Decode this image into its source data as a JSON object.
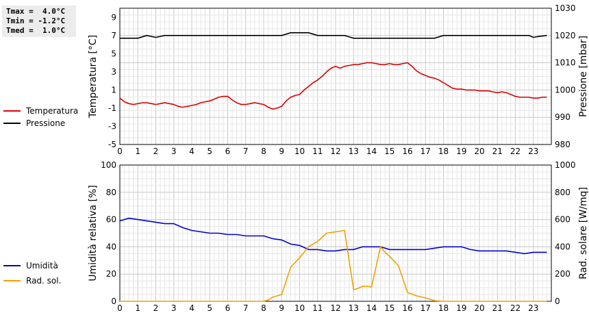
{
  "stats": {
    "tmax": "Tmax =  4.0°C",
    "tmin": "Tmin = -1.2°C",
    "tmed": "Tmed =  1.0°C"
  },
  "chart_data": [
    {
      "type": "line",
      "x_ticks": [
        "0",
        "1",
        "2",
        "3",
        "4",
        "5",
        "6",
        "7",
        "8",
        "9",
        "10",
        "11",
        "12",
        "13",
        "14",
        "15",
        "16",
        "17",
        "18",
        "19",
        "20",
        "21",
        "22",
        "23"
      ],
      "xlim": [
        0,
        24
      ],
      "ylabel_left": "Temperatura [°C]",
      "ylim_left": [
        -5,
        10
      ],
      "yticks_left": [
        "9",
        "7",
        "5",
        "3",
        "1",
        "-1",
        "-3",
        "-5"
      ],
      "ylabel_right": "Pressione [mbar]",
      "ylim_right": [
        980,
        1030
      ],
      "yticks_right": [
        "1030",
        "1020",
        "1010",
        "1000",
        "990",
        "980"
      ],
      "grid": true,
      "legend_position": "left",
      "series": [
        {
          "name": "Temperatura",
          "axis": "left",
          "color": "#dd0000",
          "x": [
            0,
            0.25,
            0.5,
            0.75,
            1,
            1.25,
            1.5,
            1.75,
            2,
            2.25,
            2.5,
            2.75,
            3,
            3.25,
            3.5,
            3.75,
            4,
            4.25,
            4.5,
            4.75,
            5,
            5.25,
            5.5,
            5.75,
            6,
            6.25,
            6.5,
            6.75,
            7,
            7.25,
            7.5,
            7.75,
            8,
            8.25,
            8.5,
            8.75,
            9,
            9.25,
            9.5,
            9.75,
            10,
            10.25,
            10.5,
            10.75,
            11,
            11.25,
            11.5,
            11.75,
            12,
            12.25,
            12.5,
            12.75,
            13,
            13.25,
            13.5,
            13.75,
            14,
            14.25,
            14.5,
            14.75,
            15,
            15.25,
            15.5,
            15.75,
            16,
            16.25,
            16.5,
            16.75,
            17,
            17.25,
            17.5,
            17.75,
            18,
            18.25,
            18.5,
            18.75,
            19,
            19.25,
            19.5,
            19.75,
            20,
            20.25,
            20.5,
            20.75,
            21,
            21.25,
            21.5,
            21.75,
            22,
            22.25,
            22.5,
            22.75,
            23,
            23.25,
            23.5,
            23.75
          ],
          "y": [
            0.1,
            -0.3,
            -0.5,
            -0.6,
            -0.5,
            -0.4,
            -0.4,
            -0.5,
            -0.6,
            -0.5,
            -0.4,
            -0.5,
            -0.6,
            -0.8,
            -0.9,
            -0.8,
            -0.7,
            -0.6,
            -0.4,
            -0.3,
            -0.2,
            0,
            0.2,
            0.3,
            0.3,
            -0.1,
            -0.4,
            -0.6,
            -0.6,
            -0.5,
            -0.4,
            -0.5,
            -0.6,
            -0.9,
            -1.1,
            -1.0,
            -0.8,
            -0.2,
            0.2,
            0.4,
            0.5,
            1.0,
            1.4,
            1.8,
            2.1,
            2.5,
            3.0,
            3.4,
            3.6,
            3.4,
            3.6,
            3.7,
            3.8,
            3.8,
            3.9,
            4.0,
            4.0,
            3.9,
            3.8,
            3.8,
            3.9,
            3.8,
            3.8,
            3.9,
            4.0,
            3.6,
            3.1,
            2.8,
            2.6,
            2.4,
            2.3,
            2.1,
            1.8,
            1.5,
            1.2,
            1.1,
            1.1,
            1.0,
            1.0,
            1.0,
            0.9,
            0.9,
            0.9,
            0.8,
            0.7,
            0.8,
            0.7,
            0.5,
            0.3,
            0.2,
            0.2,
            0.2,
            0.1,
            0.1,
            0.2,
            0.2
          ]
        },
        {
          "name": "Pressione",
          "axis": "right",
          "color": "#000000",
          "x": [
            0,
            1,
            1.25,
            1.5,
            2,
            2.5,
            3,
            4,
            5,
            6,
            7,
            8,
            9,
            9.5,
            10,
            10.5,
            11,
            12,
            12.5,
            13,
            14,
            15,
            16,
            17,
            17.5,
            18,
            19,
            20,
            21,
            22,
            22.75,
            23,
            23.25,
            23.75
          ],
          "y": [
            1019,
            1019,
            1019.5,
            1020,
            1019.3,
            1020,
            1020,
            1020,
            1020,
            1020,
            1020,
            1020,
            1020,
            1021,
            1021,
            1021,
            1020,
            1020,
            1020,
            1019,
            1019,
            1019,
            1019,
            1019,
            1019,
            1020,
            1020,
            1020,
            1020,
            1020,
            1020,
            1019.3,
            1019.6,
            1020
          ]
        }
      ]
    },
    {
      "type": "line",
      "x_ticks": [
        "0",
        "1",
        "2",
        "3",
        "4",
        "5",
        "6",
        "7",
        "8",
        "9",
        "10",
        "11",
        "12",
        "13",
        "14",
        "15",
        "16",
        "17",
        "18",
        "19",
        "20",
        "21",
        "22",
        "23"
      ],
      "xlim": [
        0,
        24
      ],
      "ylabel_left": "Umidità relativa [%]",
      "ylim_left": [
        0,
        100
      ],
      "yticks_left": [
        "100",
        "80",
        "60",
        "40",
        "20",
        "0"
      ],
      "ylabel_right": "Rad. solare [W/mq]",
      "ylim_right": [
        0,
        1000
      ],
      "yticks_right": [
        "1000",
        "800",
        "600",
        "400",
        "200",
        "0"
      ],
      "grid": true,
      "legend_position": "left",
      "series": [
        {
          "name": "Umidità",
          "axis": "left",
          "color": "#0000cc",
          "x": [
            0,
            0.5,
            1,
            1.5,
            2,
            2.5,
            3,
            3.5,
            4,
            4.5,
            5,
            5.5,
            6,
            6.5,
            7,
            7.5,
            8,
            8.5,
            9,
            9.5,
            10,
            10.5,
            11,
            11.5,
            12,
            12.5,
            13,
            13.5,
            14,
            14.5,
            15,
            15.5,
            16,
            16.5,
            17,
            17.5,
            18,
            18.5,
            19,
            19.5,
            20,
            20.5,
            21,
            21.5,
            22,
            22.5,
            23,
            23.5,
            23.75
          ],
          "y": [
            59,
            61,
            60,
            59,
            58,
            57,
            57,
            54,
            52,
            51,
            50,
            50,
            49,
            49,
            48,
            48,
            48,
            46,
            45,
            42,
            41,
            38,
            38,
            37,
            37,
            38,
            38,
            40,
            40,
            40,
            38,
            38,
            38,
            38,
            38,
            39,
            40,
            40,
            40,
            38,
            37,
            37,
            37,
            37,
            36,
            35,
            36,
            36,
            36
          ]
        },
        {
          "name": "Rad. sol.",
          "axis": "right",
          "color": "#f0a000",
          "x": [
            0,
            0.5,
            1,
            1.5,
            2,
            2.5,
            3,
            3.5,
            4,
            4.5,
            5,
            5.5,
            6,
            6.5,
            7,
            7.5,
            8,
            8.25,
            8.5,
            9,
            9.5,
            10,
            10.5,
            11,
            11.5,
            12,
            12.5,
            13,
            13.25,
            13.5,
            13.75,
            14,
            14.5,
            14.75,
            15,
            15.5,
            16,
            16.5,
            17,
            17.5,
            18,
            18.5,
            19,
            19.5,
            20,
            20.5,
            21,
            21.5,
            22,
            22.5,
            23,
            23.5,
            23.75
          ],
          "y": [
            0,
            0,
            0,
            0,
            0,
            0,
            0,
            0,
            0,
            0,
            0,
            0,
            0,
            0,
            0,
            0,
            0,
            10,
            30,
            50,
            250,
            320,
            400,
            440,
            500,
            510,
            520,
            85,
            95,
            110,
            110,
            105,
            400,
            360,
            330,
            260,
            65,
            40,
            25,
            5,
            0,
            0,
            0,
            0,
            0,
            0,
            0,
            0,
            0,
            0,
            0,
            0,
            0
          ]
        }
      ]
    }
  ]
}
